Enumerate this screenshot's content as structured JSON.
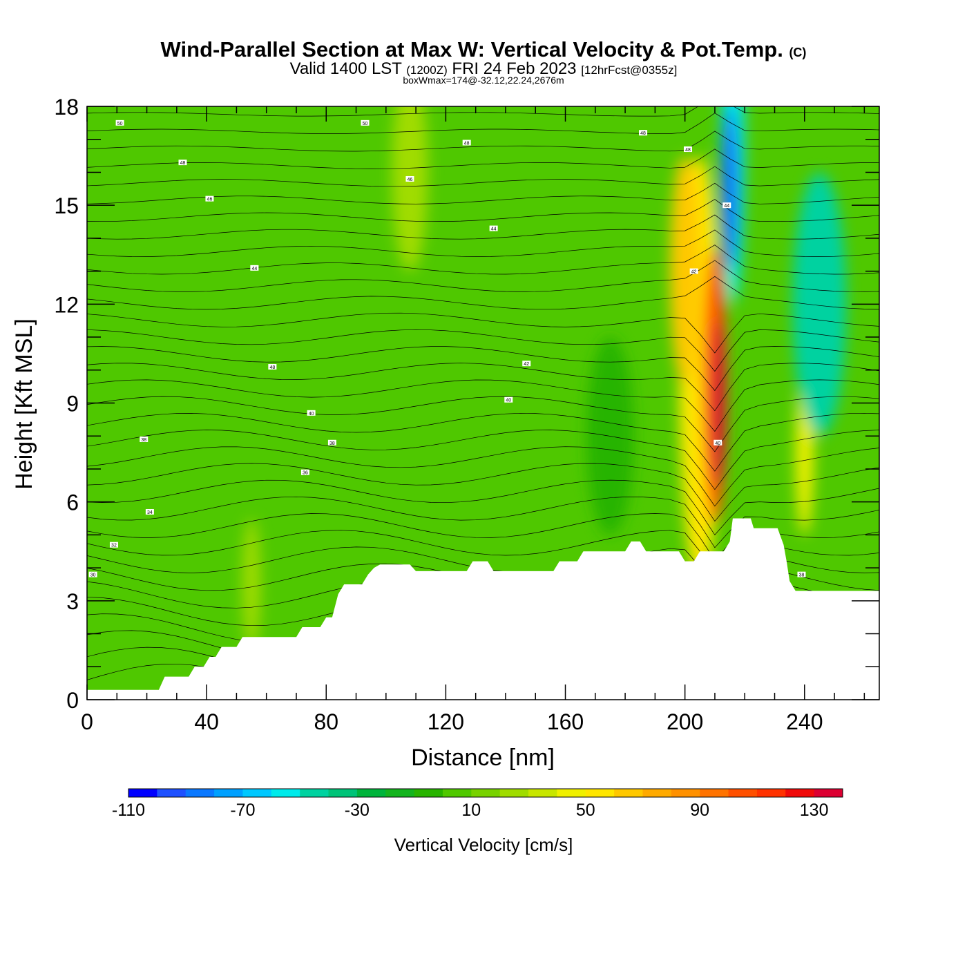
{
  "header": {
    "title_main": "Wind-Parallel Section at Max W: Vertical Velocity & Pot.Temp.",
    "copyright": "(C)",
    "valid_prefix": "Valid 1400 LST",
    "valid_utc": "(1200Z)",
    "valid_date": "FRI 24 Feb 2023",
    "forecast_tag": "[12hrFcst@0355z]",
    "box_info": "boxWmax=174@-32.12,22.24,2676m"
  },
  "chart_data": {
    "type": "heatmap",
    "xlabel": "Distance [nm]",
    "ylabel": "Height [Kft MSL]",
    "xlim": [
      0,
      265
    ],
    "ylim": [
      0,
      18
    ],
    "xticks": [
      0,
      40,
      80,
      120,
      160,
      200,
      240
    ],
    "yticks": [
      0,
      3,
      6,
      9,
      12,
      15,
      18
    ],
    "background_color": "#4fc800",
    "colorbar": {
      "label": "Vertical Velocity [cm/s]",
      "levels": [
        -110,
        -100,
        -90,
        -80,
        -70,
        -60,
        -50,
        -40,
        -30,
        -20,
        -10,
        0,
        10,
        20,
        30,
        40,
        50,
        60,
        70,
        80,
        90,
        100,
        110,
        120,
        130,
        140
      ],
      "tick_labels": [
        "-110",
        "-70",
        "-30",
        "10",
        "50",
        "90",
        "130"
      ],
      "tick_values": [
        -110,
        -70,
        -30,
        10,
        50,
        90,
        130
      ],
      "colors": [
        "#0000ff",
        "#1e50ff",
        "#0a78ff",
        "#00a0ff",
        "#00c8ff",
        "#00ebeb",
        "#00d2a0",
        "#00c378",
        "#00b43c",
        "#14b41e",
        "#28b400",
        "#50c800",
        "#78d200",
        "#a0dc00",
        "#c8e600",
        "#f0f000",
        "#ffe600",
        "#ffc800",
        "#ffaa00",
        "#ff9100",
        "#ff7300",
        "#ff5000",
        "#ff3200",
        "#f00a0a",
        "#dc0032"
      ]
    },
    "terrain": [
      [
        0,
        0.3
      ],
      [
        5,
        0.3
      ],
      [
        24,
        0.3
      ],
      [
        26,
        0.7
      ],
      [
        34,
        0.7
      ],
      [
        36,
        1.0
      ],
      [
        39,
        1.0
      ],
      [
        41,
        1.3
      ],
      [
        43,
        1.3
      ],
      [
        45,
        1.6
      ],
      [
        50,
        1.6
      ],
      [
        52,
        1.9
      ],
      [
        70,
        1.9
      ],
      [
        72,
        2.2
      ],
      [
        78,
        2.2
      ],
      [
        80,
        2.5
      ],
      [
        82,
        2.5
      ],
      [
        84,
        3.2
      ],
      [
        86,
        3.5
      ],
      [
        92,
        3.5
      ],
      [
        94,
        3.8
      ],
      [
        96,
        4.0
      ],
      [
        98,
        4.1
      ],
      [
        108,
        4.1
      ],
      [
        110,
        3.9
      ],
      [
        127,
        3.9
      ],
      [
        129,
        4.2
      ],
      [
        134,
        4.2
      ],
      [
        136,
        3.9
      ],
      [
        156,
        3.9
      ],
      [
        158,
        4.2
      ],
      [
        164,
        4.2
      ],
      [
        166,
        4.5
      ],
      [
        180,
        4.5
      ],
      [
        182,
        4.8
      ],
      [
        185,
        4.8
      ],
      [
        187,
        4.5
      ],
      [
        198,
        4.5
      ],
      [
        200,
        4.2
      ],
      [
        203,
        4.2
      ],
      [
        205,
        4.5
      ],
      [
        213,
        4.5
      ],
      [
        215,
        4.8
      ],
      [
        216,
        5.5
      ],
      [
        222,
        5.5
      ],
      [
        223,
        5.2
      ],
      [
        231,
        5.2
      ],
      [
        233,
        4.7
      ],
      [
        234,
        4.2
      ],
      [
        235,
        3.6
      ],
      [
        237,
        3.3
      ],
      [
        265,
        3.3
      ]
    ],
    "w_features": [
      {
        "x": 211,
        "y": 9.0,
        "rx": 2.5,
        "ry": 2.5,
        "value": 130
      },
      {
        "x": 210,
        "y": 9.5,
        "rx": 4,
        "ry": 4.2,
        "value": 100
      },
      {
        "x": 205,
        "y": 10.0,
        "rx": 7,
        "ry": 6.5,
        "value": 50
      },
      {
        "x": 200,
        "y": 13.0,
        "rx": 5,
        "ry": 3.5,
        "value": 60
      },
      {
        "x": 215,
        "y": 15.5,
        "rx": 3,
        "ry": 2.5,
        "value": -90
      },
      {
        "x": 216,
        "y": 16.5,
        "rx": 4,
        "ry": 4.5,
        "value": -60
      },
      {
        "x": 245,
        "y": 12.0,
        "rx": 9,
        "ry": 4,
        "value": -50
      },
      {
        "x": 240,
        "y": 7.5,
        "rx": 3,
        "ry": 2.5,
        "value": 40
      },
      {
        "x": 55,
        "y": 3.5,
        "rx": 3,
        "ry": 2.0,
        "value": 25
      },
      {
        "x": 108,
        "y": 16.0,
        "rx": 6,
        "ry": 3,
        "value": 20
      },
      {
        "x": 175,
        "y": 8.0,
        "rx": 8,
        "ry": 3,
        "value": -10
      }
    ],
    "theta_labels": [
      {
        "x": 11,
        "y": 17.5,
        "text": "50"
      },
      {
        "x": 93,
        "y": 17.5,
        "text": "50"
      },
      {
        "x": 186,
        "y": 17.2,
        "text": "48"
      },
      {
        "x": 127,
        "y": 16.9,
        "text": "48"
      },
      {
        "x": 201,
        "y": 16.7,
        "text": "48"
      },
      {
        "x": 32,
        "y": 16.3,
        "text": "48"
      },
      {
        "x": 108,
        "y": 15.8,
        "text": "46"
      },
      {
        "x": 41,
        "y": 15.2,
        "text": "46"
      },
      {
        "x": 214,
        "y": 15.0,
        "text": "44"
      },
      {
        "x": 136,
        "y": 14.3,
        "text": "44"
      },
      {
        "x": 203,
        "y": 13.0,
        "text": "42"
      },
      {
        "x": 56,
        "y": 13.1,
        "text": "44"
      },
      {
        "x": 147,
        "y": 10.2,
        "text": "42"
      },
      {
        "x": 62,
        "y": 10.1,
        "text": "48"
      },
      {
        "x": 141,
        "y": 9.1,
        "text": "40"
      },
      {
        "x": 75,
        "y": 8.7,
        "text": "40"
      },
      {
        "x": 19,
        "y": 7.9,
        "text": "38"
      },
      {
        "x": 82,
        "y": 7.8,
        "text": "38"
      },
      {
        "x": 211,
        "y": 7.8,
        "text": "40"
      },
      {
        "x": 73,
        "y": 6.9,
        "text": "36"
      },
      {
        "x": 21,
        "y": 5.7,
        "text": "34"
      },
      {
        "x": 9,
        "y": 4.7,
        "text": "32"
      },
      {
        "x": 2,
        "y": 3.8,
        "text": "30"
      },
      {
        "x": 239,
        "y": 3.8,
        "text": "38"
      }
    ]
  }
}
